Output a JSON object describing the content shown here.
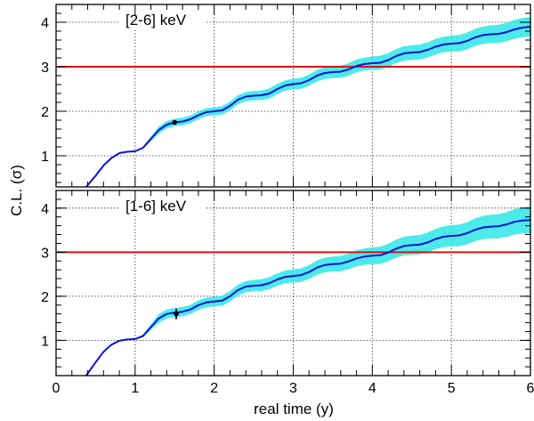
{
  "chart_data": {
    "type": "line",
    "ylabel": "C.L. (σ)",
    "xlabel": "real time (y)",
    "xlim": [
      0,
      6
    ],
    "x_ticks": [
      "0",
      "1",
      "2",
      "3",
      "4",
      "5",
      "6"
    ],
    "grid": true,
    "colors": {
      "curve": "#0a14d8",
      "band": "#2ee6e6",
      "threshold": "#e01010",
      "point": "#000000"
    },
    "panels": [
      {
        "label": "[2-6] keV",
        "ylim": [
          0.3,
          4.4
        ],
        "y_ticks": [
          "1",
          "2",
          "3",
          "4"
        ],
        "threshold": 3,
        "curve": {
          "x": [
            0.38,
            0.5,
            0.6,
            0.7,
            0.8,
            0.9,
            1.0,
            1.1,
            1.2,
            1.3,
            1.4,
            1.5,
            1.6,
            1.7,
            1.8,
            1.9,
            2.0,
            2.1,
            2.2,
            2.3,
            2.4,
            2.5,
            2.6,
            2.7,
            2.8,
            2.9,
            3.0,
            3.1,
            3.2,
            3.3,
            3.4,
            3.5,
            3.6,
            3.7,
            3.8,
            3.9,
            4.0,
            4.1,
            4.2,
            4.3,
            4.4,
            4.5,
            4.6,
            4.7,
            4.8,
            4.9,
            5.0,
            5.1,
            5.2,
            5.3,
            5.4,
            5.5,
            5.6,
            5.7,
            5.8,
            5.9,
            6.0
          ],
          "y": [
            0.3,
            0.55,
            0.78,
            0.95,
            1.06,
            1.09,
            1.1,
            1.18,
            1.38,
            1.58,
            1.7,
            1.75,
            1.77,
            1.82,
            1.91,
            1.98,
            2.0,
            2.02,
            2.12,
            2.26,
            2.33,
            2.35,
            2.36,
            2.4,
            2.5,
            2.58,
            2.61,
            2.63,
            2.7,
            2.8,
            2.86,
            2.88,
            2.89,
            2.94,
            3.02,
            3.06,
            3.08,
            3.09,
            3.15,
            3.24,
            3.3,
            3.32,
            3.33,
            3.38,
            3.45,
            3.5,
            3.52,
            3.53,
            3.58,
            3.66,
            3.71,
            3.73,
            3.74,
            3.78,
            3.84,
            3.88,
            3.9
          ]
        },
        "band_halfwidth": {
          "x": [
            0.38,
            1.0,
            1.3,
            2.0,
            3.0,
            4.0,
            5.0,
            6.0
          ],
          "dy": [
            0.0,
            0.0,
            0.08,
            0.09,
            0.12,
            0.15,
            0.18,
            0.22
          ]
        },
        "point": {
          "x": 1.5,
          "y": 1.75,
          "err": 0.05
        }
      },
      {
        "label": "[1-6] keV",
        "ylim": [
          0.2,
          4.4
        ],
        "y_ticks": [
          "1",
          "2",
          "3",
          "4"
        ],
        "threshold": 3,
        "curve": {
          "x": [
            0.38,
            0.5,
            0.6,
            0.7,
            0.8,
            0.9,
            1.0,
            1.1,
            1.2,
            1.3,
            1.4,
            1.5,
            1.6,
            1.7,
            1.8,
            1.9,
            2.0,
            2.1,
            2.2,
            2.3,
            2.4,
            2.5,
            2.6,
            2.7,
            2.8,
            2.9,
            3.0,
            3.1,
            3.2,
            3.3,
            3.4,
            3.5,
            3.6,
            3.7,
            3.8,
            3.9,
            4.0,
            4.1,
            4.2,
            4.3,
            4.4,
            4.5,
            4.6,
            4.7,
            4.8,
            4.9,
            5.0,
            5.1,
            5.2,
            5.3,
            5.4,
            5.5,
            5.6,
            5.7,
            5.8,
            5.9,
            6.0
          ],
          "y": [
            0.2,
            0.5,
            0.74,
            0.9,
            0.99,
            1.02,
            1.03,
            1.1,
            1.3,
            1.5,
            1.6,
            1.63,
            1.65,
            1.7,
            1.8,
            1.86,
            1.88,
            1.9,
            2.0,
            2.14,
            2.22,
            2.24,
            2.25,
            2.3,
            2.38,
            2.44,
            2.46,
            2.48,
            2.55,
            2.65,
            2.71,
            2.73,
            2.74,
            2.79,
            2.86,
            2.9,
            2.92,
            2.93,
            2.99,
            3.08,
            3.14,
            3.16,
            3.17,
            3.22,
            3.3,
            3.35,
            3.37,
            3.38,
            3.43,
            3.51,
            3.56,
            3.58,
            3.59,
            3.63,
            3.69,
            3.72,
            3.73
          ]
        },
        "band_halfwidth": {
          "x": [
            0.38,
            1.0,
            1.3,
            2.0,
            3.0,
            4.0,
            5.0,
            6.0
          ],
          "dy": [
            0.0,
            0.0,
            0.1,
            0.11,
            0.15,
            0.19,
            0.24,
            0.3
          ]
        },
        "point": {
          "x": 1.52,
          "y": 1.6,
          "err": 0.12
        }
      }
    ]
  }
}
